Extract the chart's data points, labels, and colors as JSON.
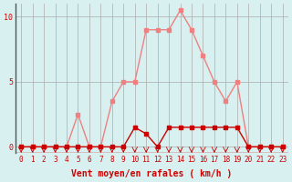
{
  "hours": [
    0,
    1,
    2,
    3,
    4,
    5,
    6,
    7,
    8,
    9,
    10,
    11,
    12,
    13,
    14,
    15,
    16,
    17,
    18,
    19,
    20,
    21,
    22,
    23
  ],
  "rafales": [
    0,
    0,
    0,
    0,
    0,
    2.5,
    0,
    0,
    3.5,
    5,
    5,
    9,
    9,
    9,
    10.5,
    9,
    7,
    5,
    3.5,
    5,
    0,
    0,
    0,
    0
  ],
  "moyen": [
    0,
    0,
    0,
    0,
    0,
    0,
    0,
    0,
    0,
    0,
    1.5,
    1,
    0,
    1.5,
    1.5,
    1.5,
    1.5,
    1.5,
    1.5,
    1.5,
    0,
    0,
    0,
    0
  ],
  "bg_color": "#d8f0f0",
  "line_color_rafales": "#f08080",
  "line_color_moyen": "#cc0000",
  "grid_color": "#aaaaaa",
  "xlabel": "Vent moyen/en rafales ( km/h )",
  "ylabel_ticks": [
    0,
    5,
    10
  ],
  "xlim": [
    -0.5,
    23.5
  ],
  "ylim": [
    -0.5,
    11
  ]
}
